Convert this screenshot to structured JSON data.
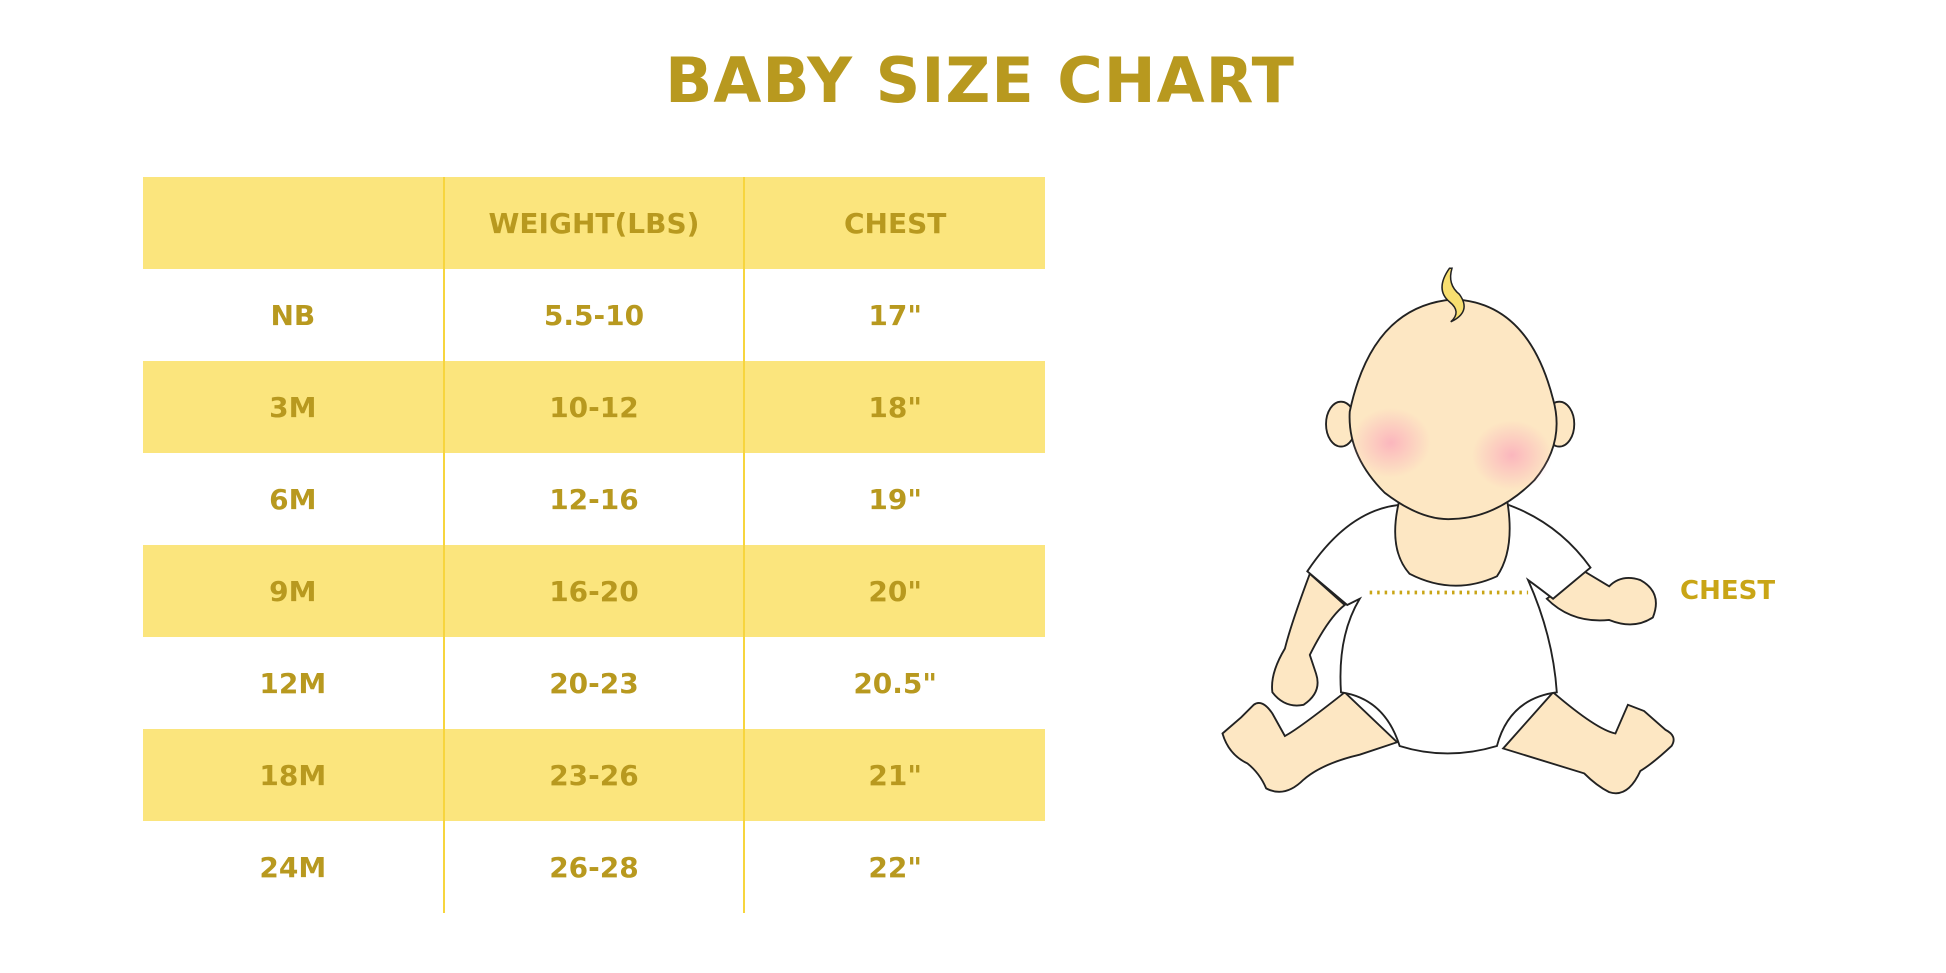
{
  "title": "BABY SIZE CHART",
  "table": {
    "headers": [
      "",
      "WEIGHT(LBS)",
      "CHEST"
    ],
    "rows": [
      [
        "NB",
        "5.5-10",
        "17\""
      ],
      [
        "3M",
        "10-12",
        "18\""
      ],
      [
        "6M",
        "12-16",
        "19\""
      ],
      [
        "9M",
        "16-20",
        "20\""
      ],
      [
        "12M",
        "20-23",
        "20.5\""
      ],
      [
        "18M",
        "23-26",
        "21\""
      ],
      [
        "24M",
        "26-28",
        "22\""
      ]
    ]
  },
  "illustration": {
    "label": "CHEST",
    "icon": "baby-illustration-icon"
  },
  "colors": {
    "text": "#b8991f",
    "band": "#fbe57d",
    "divider": "#f7d53e",
    "skin": "#fde7c3"
  }
}
